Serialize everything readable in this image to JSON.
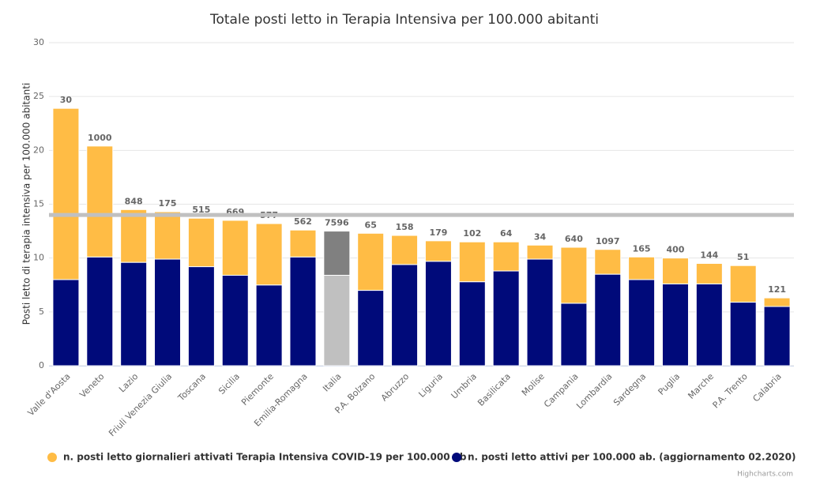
{
  "chart_data": {
    "type": "stacked-bar",
    "title": "Totale posti letto in Terapia Intensiva per 100.000 abitanti",
    "y_axis_label": "Posti letto di terapia intensiva per 100.000 abitanti",
    "categories": [
      "Valle d'Aosta",
      "Veneto",
      "Lazio",
      "Friuli Venezia Giulia",
      "Toscana",
      "Sicilia",
      "Piemonte",
      "Emilia-Romagna",
      "Italia",
      "P.A. Bolzano",
      "Abruzzo",
      "Liguria",
      "Umbria",
      "Basilicata",
      "Molise",
      "Campania",
      "Lombardia",
      "Sardegna",
      "Puglia",
      "Marche",
      "P.A. Trento",
      "Calabria"
    ],
    "series": [
      {
        "name": "n. posti letto attivi per 100.000 ab. (aggiornamento 02.2020)",
        "color": "#000a7a",
        "highlight_color": "#c0c0c0",
        "values": [
          8.0,
          10.1,
          9.6,
          9.9,
          9.2,
          8.4,
          7.5,
          10.1,
          8.4,
          7.0,
          9.4,
          9.7,
          7.8,
          8.8,
          9.9,
          5.8,
          8.5,
          8.0,
          7.6,
          7.6,
          5.9,
          5.5
        ]
      },
      {
        "name": "n. posti letto giornalieri attivati Terapia Intensiva COVID-19 per 100.000 ab",
        "color": "#ffbc45",
        "highlight_color": "#808080",
        "values": [
          15.9,
          10.3,
          4.9,
          4.4,
          4.5,
          5.1,
          5.7,
          2.5,
          4.1,
          5.3,
          2.7,
          1.9,
          3.7,
          2.7,
          1.3,
          5.2,
          2.3,
          2.1,
          2.4,
          1.9,
          3.4,
          0.8
        ]
      }
    ],
    "highlight_category": "Italia",
    "stack_labels": [
      30,
      1000,
      848,
      175,
      515,
      669,
      577,
      562,
      7596,
      65,
      158,
      179,
      102,
      64,
      34,
      640,
      1097,
      165,
      400,
      144,
      51,
      121
    ],
    "reference_line": 14,
    "reference_line_color": "#c0c0c0",
    "ylim": [
      0,
      30
    ],
    "yticks": [
      0,
      5,
      10,
      15,
      20,
      25,
      30
    ],
    "grid": true,
    "legend_order": [
      1,
      0
    ],
    "credits": "Highcharts.com"
  }
}
